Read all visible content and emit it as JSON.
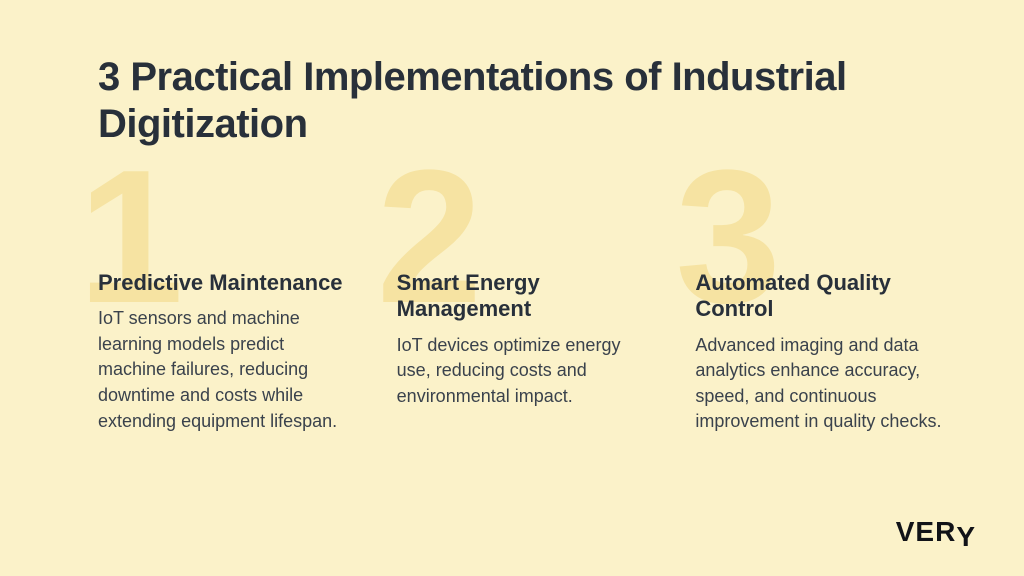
{
  "colors": {
    "background": "#fbf2c9",
    "text": "#28303a",
    "bodyText": "#3a424c",
    "bigNumber": "#f6e3a2",
    "logo": "#111318"
  },
  "typography": {
    "title_fontsize": 40,
    "subhead_fontsize": 22,
    "body_fontsize": 18,
    "bignum_fontsize": 190,
    "logo_fontsize": 28
  },
  "title": "3 Practical Implementations of Industrial Digitization",
  "columns": [
    {
      "num": "1",
      "heading": "Predictive Maintenance",
      "body": "IoT sensors and machine learning models predict machine failures, reducing downtime and costs while extending equipment lifespan."
    },
    {
      "num": "2",
      "heading": "Smart Energy Management",
      "body": "IoT devices optimize energy use, reducing costs and environmental impact."
    },
    {
      "num": "3",
      "heading": "Automated Quality Control",
      "body": "Advanced imaging and data analytics enhance accuracy, speed, and continuous improvement in quality checks."
    }
  ],
  "logo": "VERY"
}
